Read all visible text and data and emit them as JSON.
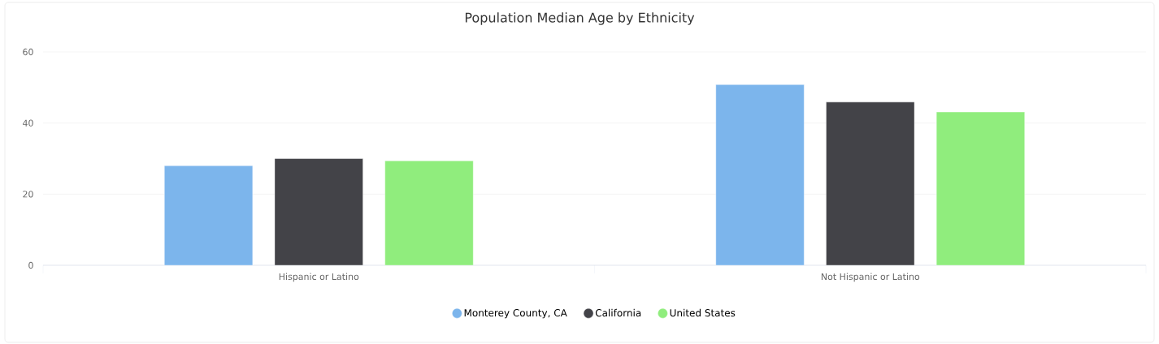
{
  "chart_data": {
    "type": "bar",
    "title": "Population Median Age by Ethnicity",
    "categories": [
      "Hispanic or Latino",
      "Not Hispanic or Latino"
    ],
    "series": [
      {
        "name": "Monterey County, CA",
        "color": "#7cb5ec",
        "values": [
          28.0,
          50.8
        ]
      },
      {
        "name": "California",
        "color": "#434348",
        "values": [
          30.0,
          45.9
        ]
      },
      {
        "name": "United States",
        "color": "#90ed7d",
        "values": [
          29.4,
          43.1
        ]
      }
    ],
    "ylim": [
      0,
      60
    ],
    "yticks": [
      0,
      20,
      40,
      60
    ],
    "grid": "y",
    "legend": "bottom"
  }
}
